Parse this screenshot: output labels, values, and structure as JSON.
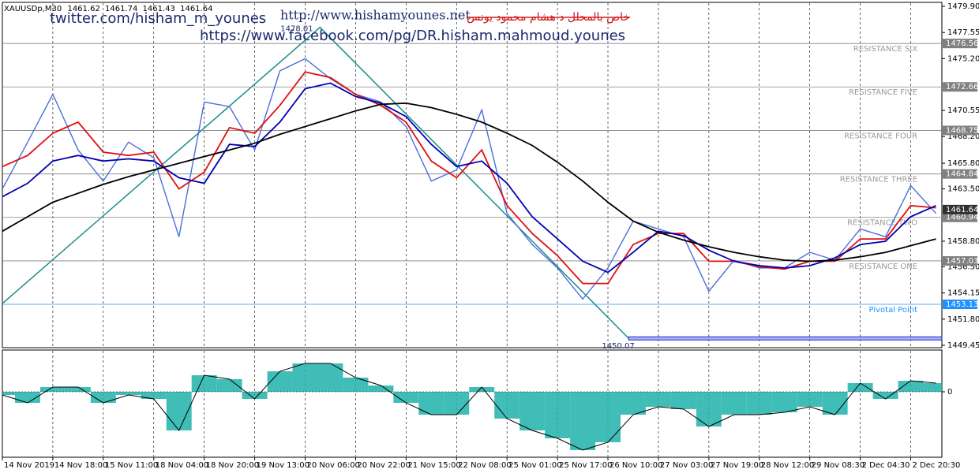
{
  "header": {
    "symbol": "XAUUSDp,M30",
    "ohlc": [
      1461.62,
      1461.74,
      1461.43,
      1461.64
    ]
  },
  "watermarks": {
    "twitter": "twitter.com/hisham_m_younes",
    "facebook": "https://www.facebook.com/pg/DR.hisham.mahmoud.younes",
    "site": "http://www.hishamyounes.net",
    "arabic": "خاص بالمحلل د هشام محمود يونس"
  },
  "chart_data": [
    {
      "type": "line",
      "x": [
        0,
        17,
        34,
        51,
        68,
        85,
        102,
        119,
        136,
        153,
        170,
        187,
        204,
        221,
        238,
        255,
        272,
        289,
        306,
        323,
        340,
        357,
        374,
        391,
        408,
        425,
        442,
        459,
        476,
        493,
        510,
        527,
        544,
        561,
        578,
        595,
        612,
        629
      ],
      "xlim": [
        0,
        633
      ],
      "xticks": [
        {
          "value": 0,
          "label": "14 Nov 2019"
        },
        {
          "value": 34,
          "label": "14 Nov 18:00"
        },
        {
          "value": 68,
          "label": "15 Nov 11:00"
        },
        {
          "value": 102,
          "label": "18 Nov 04:00"
        },
        {
          "value": 136,
          "label": "18 Nov 20:00"
        },
        {
          "value": 170,
          "label": "19 Nov 13:00"
        },
        {
          "value": 204,
          "label": "20 Nov 06:00"
        },
        {
          "value": 238,
          "label": "20 Nov 22:00"
        },
        {
          "value": 272,
          "label": "21 Nov 15:00"
        },
        {
          "value": 306,
          "label": "22 Nov 08:00"
        },
        {
          "value": 340,
          "label": "25 Nov 01:00"
        },
        {
          "value": 374,
          "label": "25 Nov 17:00"
        },
        {
          "value": 408,
          "label": "26 Nov 10:00"
        },
        {
          "value": 442,
          "label": "27 Nov 03:00"
        },
        {
          "value": 476,
          "label": "27 Nov 19:00"
        },
        {
          "value": 510,
          "label": "28 Nov 12:00"
        },
        {
          "value": 544,
          "label": "29 Nov 08:30"
        },
        {
          "value": 578,
          "label": "2 Dec 04:30"
        },
        {
          "value": 612,
          "label": "2 Dec 20:30"
        }
      ],
      "ylim": [
        1449.45,
        1479.9
      ],
      "yticks": [
        {
          "value": 1479.9,
          "label": "1479.90"
        },
        1477.55,
        {
          "value": 1475.2,
          "label": "1475.20"
        },
        1470.55,
        {
          "value": 1468.2,
          "label": "1468.20"
        },
        {
          "value": 1465.8,
          "label": "1465.80"
        },
        {
          "value": 1463.5,
          "label": "1463.50"
        },
        {
          "value": 1458.8,
          "label": "1458.80"
        },
        {
          "value": 1456.5,
          "label": "1456.50"
        },
        1454.15,
        {
          "value": 1451.8,
          "label": "1451.80"
        },
        1449.45
      ],
      "grid": true,
      "series": [
        {
          "color": "#4a6fdc",
          "values": [
            1463.5,
            1467.7,
            1472.0,
            1467.0,
            1464.2,
            1467.7,
            1466.3,
            1459.2,
            1471.3,
            1470.9,
            1467.0,
            1474.1,
            1475.2,
            1473.4,
            1472.0,
            1471.3,
            1469.1,
            1464.2,
            1465.2,
            1470.6,
            1461.3,
            1458.5,
            1456.4,
            1453.6,
            1456.4,
            1460.6,
            1459.9,
            1459.2,
            1454.3,
            1457.1,
            1456.4,
            1456.4,
            1457.8,
            1457.1,
            1459.9,
            1459.2,
            1463.8,
            1461.3
          ]
        },
        {
          "color": "#e01010",
          "values": [
            1465.5,
            1466.5,
            1468.5,
            1469.5,
            1466.8,
            1466.5,
            1466.8,
            1463.5,
            1465.0,
            1469.0,
            1468.5,
            1471.0,
            1474.0,
            1473.5,
            1472.0,
            1471.0,
            1469.5,
            1466.0,
            1464.5,
            1467.0,
            1462.0,
            1459.5,
            1457.5,
            1455.0,
            1455.0,
            1458.5,
            1459.5,
            1459.5,
            1457.0,
            1457.0,
            1456.5,
            1456.3,
            1457.0,
            1457.0,
            1459.0,
            1459.0,
            1462.0,
            1461.8
          ]
        },
        {
          "color": "#0000b0",
          "values": [
            1462.8,
            1464.0,
            1466.0,
            1466.5,
            1466.0,
            1466.2,
            1466.0,
            1464.5,
            1464.0,
            1467.5,
            1467.3,
            1469.5,
            1472.5,
            1473.0,
            1471.8,
            1471.2,
            1470.0,
            1467.5,
            1465.5,
            1466.0,
            1464.0,
            1461.0,
            1459.0,
            1457.0,
            1456.0,
            1457.8,
            1459.7,
            1459.3,
            1458.0,
            1457.0,
            1456.6,
            1456.4,
            1456.6,
            1457.3,
            1458.5,
            1458.8,
            1461.0,
            1462.0
          ]
        },
        {
          "color": "#000000",
          "values": [
            1459.7,
            1461.0,
            1462.3,
            1463.1,
            1463.9,
            1464.6,
            1465.2,
            1465.8,
            1466.4,
            1467.0,
            1467.6,
            1468.4,
            1469.1,
            1469.8,
            1470.5,
            1471.1,
            1471.2,
            1470.8,
            1470.2,
            1469.5,
            1468.5,
            1467.4,
            1465.9,
            1464.2,
            1462.3,
            1460.6,
            1459.6,
            1458.9,
            1458.3,
            1457.8,
            1457.4,
            1457.1,
            1457.0,
            1457.1,
            1457.4,
            1457.8,
            1458.4,
            1459.0
          ]
        }
      ],
      "levels": [
        {
          "name": "RESISTANCE SIX",
          "value": 1476.56,
          "color": "#808080"
        },
        {
          "name": "RESISTANCE FIVE",
          "value": 1472.66,
          "color": "#808080"
        },
        {
          "name": "RESISTANCE FOUR",
          "value": 1468.75,
          "color": "#808080"
        },
        {
          "name": "RESISTANCE THREE",
          "value": 1464.84,
          "color": "#808080"
        },
        {
          "name": "RESISTANCE TWO",
          "value": 1460.94,
          "color": "#808080"
        },
        {
          "name": "RESISTANCE ONE",
          "value": 1457.03,
          "color": "#808080"
        },
        {
          "name": "Pivotal Point",
          "value": 1453.13,
          "color": "#1e90ff"
        }
      ],
      "last_price": 1461.64,
      "trend_start": {
        "x": 0,
        "value": 1453.2
      },
      "high": {
        "x": 214,
        "value": 1478.01
      },
      "low": {
        "x": 422,
        "value": 1450.07
      },
      "trend_color": "#1a8c8c"
    },
    {
      "type": "bar",
      "x": [
        0,
        17,
        34,
        51,
        68,
        85,
        102,
        119,
        136,
        153,
        170,
        187,
        204,
        221,
        238,
        255,
        272,
        289,
        306,
        323,
        340,
        357,
        374,
        391,
        408,
        425,
        442,
        459,
        476,
        493,
        510,
        527,
        544,
        561,
        578,
        595,
        612,
        629
      ],
      "ylim": [
        -8.2,
        5.2
      ],
      "yticks": [
        0
      ],
      "series": [
        {
          "color": "#20b2aa",
          "values": [
            -0.4,
            -1.4,
            0.6,
            0.6,
            -1.4,
            -0.4,
            -0.9,
            -4.9,
            2.1,
            1.6,
            -0.9,
            2.6,
            3.6,
            3.6,
            1.8,
            0.8,
            -1.4,
            -2.9,
            -2.9,
            0.6,
            -3.4,
            -4.9,
            -5.9,
            -7.4,
            -6.4,
            -2.9,
            -1.9,
            -2.2,
            -4.4,
            -2.9,
            -2.9,
            -2.6,
            -1.9,
            -2.9,
            1.1,
            -0.9,
            1.4,
            1.1
          ]
        }
      ]
    }
  ]
}
